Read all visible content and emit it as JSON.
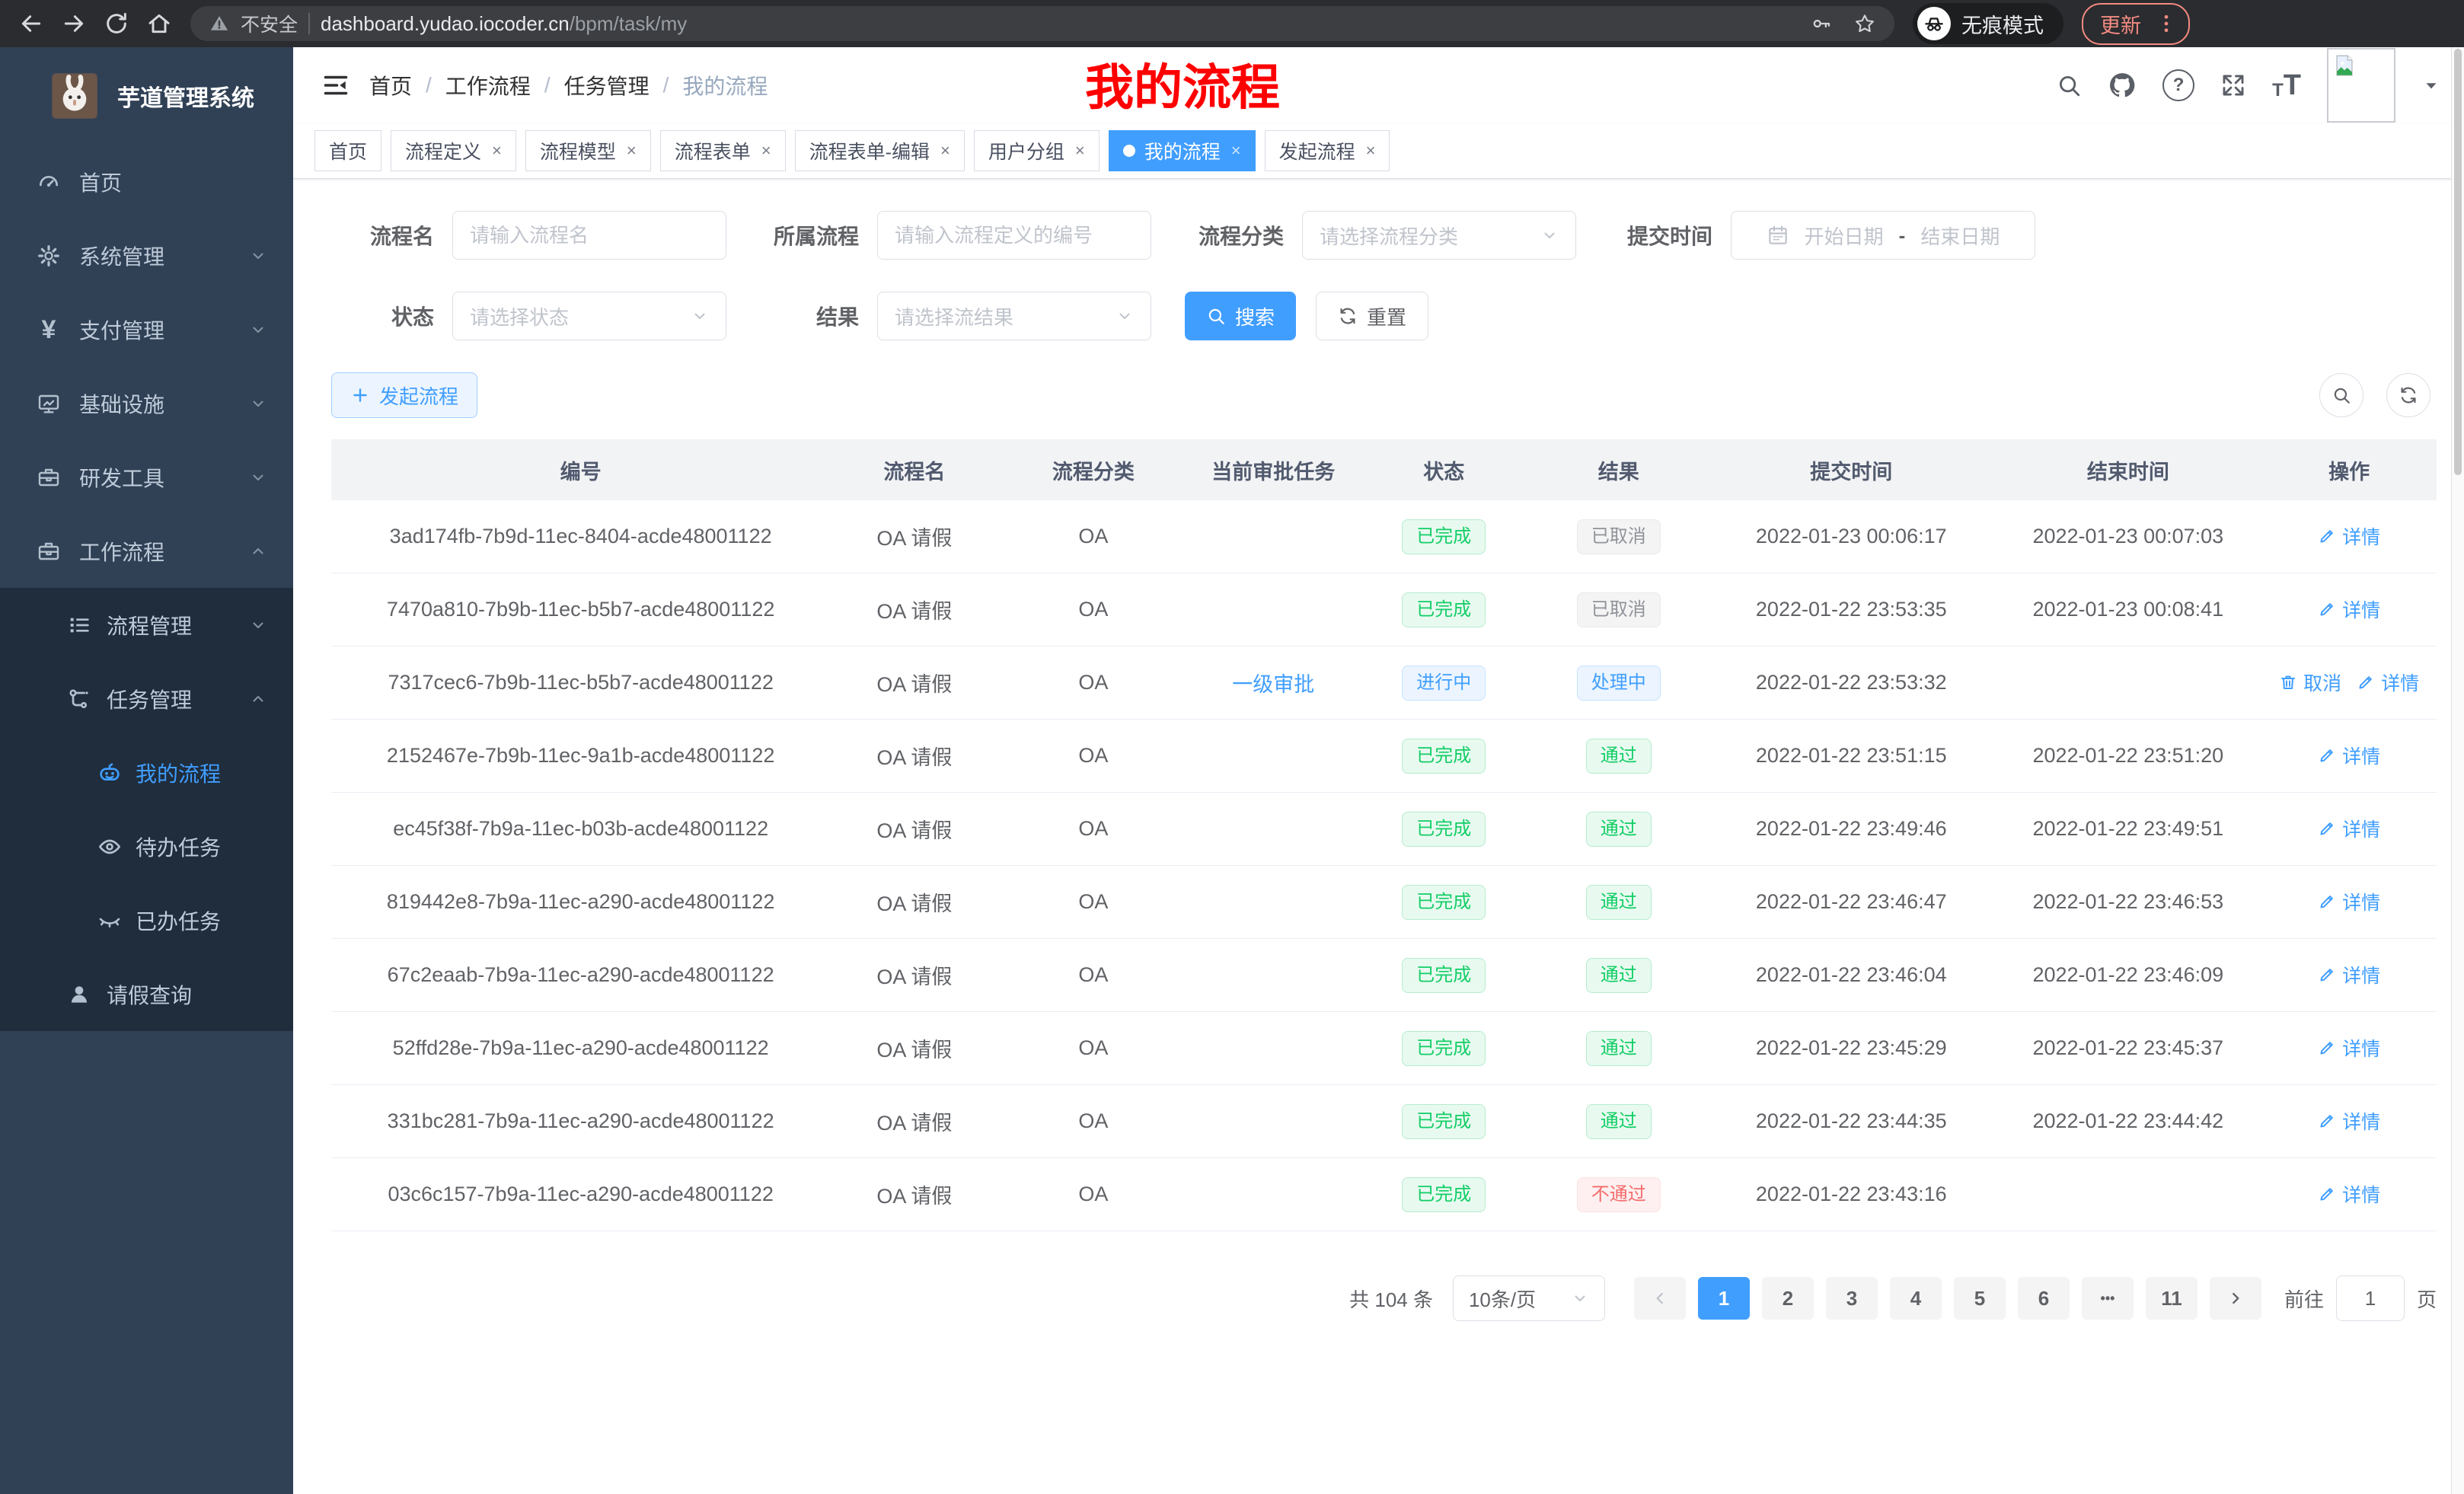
{
  "browser": {
    "security_warning": "不安全",
    "url_host": "dashboard.yudao.iocoder.cn",
    "url_path": "/bpm/task/my",
    "incognito_label": "无痕模式",
    "update_label": "更新"
  },
  "sidebar": {
    "app_title": "芋道管理系统",
    "items": [
      {
        "label": "首页",
        "icon": "gauge-icon",
        "depth": 1,
        "chevron": "",
        "dark": false,
        "active": false
      },
      {
        "label": "系统管理",
        "icon": "gear-icon",
        "depth": 1,
        "chevron": "down",
        "dark": false,
        "active": false
      },
      {
        "label": "支付管理",
        "icon": "yen-icon",
        "depth": 1,
        "chevron": "down",
        "dark": false,
        "active": false
      },
      {
        "label": "基础设施",
        "icon": "monitor-icon",
        "depth": 1,
        "chevron": "down",
        "dark": false,
        "active": false
      },
      {
        "label": "研发工具",
        "icon": "toolbox-icon",
        "depth": 1,
        "chevron": "down",
        "dark": false,
        "active": false
      },
      {
        "label": "工作流程",
        "icon": "briefcase-icon",
        "depth": 1,
        "chevron": "up",
        "dark": false,
        "active": false
      },
      {
        "label": "流程管理",
        "icon": "list-tree-icon",
        "depth": 2,
        "chevron": "down",
        "dark": true,
        "active": false
      },
      {
        "label": "任务管理",
        "icon": "flow-icon",
        "depth": 2,
        "chevron": "up",
        "dark": true,
        "active": false
      },
      {
        "label": "我的流程",
        "icon": "robot-icon",
        "depth": 3,
        "chevron": "",
        "dark": true,
        "active": true
      },
      {
        "label": "待办任务",
        "icon": "eye-icon",
        "depth": 3,
        "chevron": "",
        "dark": true,
        "active": false
      },
      {
        "label": "已办任务",
        "icon": "eye-closed-icon",
        "depth": 3,
        "chevron": "",
        "dark": true,
        "active": false
      },
      {
        "label": "请假查询",
        "icon": "user-icon",
        "depth": 2,
        "chevron": "",
        "dark": true,
        "active": false
      }
    ]
  },
  "header": {
    "breadcrumb": [
      "首页",
      "工作流程",
      "任务管理",
      "我的流程"
    ],
    "annotation": "我的流程"
  },
  "tabs": [
    {
      "label": "首页",
      "closable": false,
      "active": false
    },
    {
      "label": "流程定义",
      "closable": true,
      "active": false
    },
    {
      "label": "流程模型",
      "closable": true,
      "active": false
    },
    {
      "label": "流程表单",
      "closable": true,
      "active": false
    },
    {
      "label": "流程表单-编辑",
      "closable": true,
      "active": false
    },
    {
      "label": "用户分组",
      "closable": true,
      "active": false
    },
    {
      "label": "我的流程",
      "closable": true,
      "active": true
    },
    {
      "label": "发起流程",
      "closable": true,
      "active": false
    }
  ],
  "filters": {
    "row1": [
      {
        "label": "流程名",
        "type": "input",
        "placeholder": "请输入流程名"
      },
      {
        "label": "所属流程",
        "type": "input",
        "placeholder": "请输入流程定义的编号"
      },
      {
        "label": "流程分类",
        "type": "select",
        "placeholder": "请选择流程分类"
      },
      {
        "label": "提交时间",
        "type": "daterange",
        "start": "开始日期",
        "sep": "-",
        "end": "结束日期"
      }
    ],
    "row2": [
      {
        "label": "状态",
        "type": "select",
        "placeholder": "请选择状态"
      },
      {
        "label": "结果",
        "type": "select",
        "placeholder": "请选择流结果"
      }
    ],
    "search_label": "搜索",
    "reset_label": "重置"
  },
  "toolbar": {
    "create_label": "发起流程"
  },
  "table": {
    "columns": [
      "编号",
      "流程名",
      "流程分类",
      "当前审批任务",
      "状态",
      "结果",
      "提交时间",
      "结束时间",
      "操作"
    ],
    "rows": [
      {
        "id": "3ad174fb-7b9d-11ec-8404-acde48001122",
        "name": "OA 请假",
        "category": "OA",
        "task": "",
        "status": "已完成",
        "status_type": "success",
        "result": "已取消",
        "result_type": "info",
        "submit": "2022-01-23 00:06:17",
        "end": "2022-01-23 00:07:03",
        "actions": [
          {
            "label": "详情",
            "icon": "edit-icon"
          }
        ]
      },
      {
        "id": "7470a810-7b9b-11ec-b5b7-acde48001122",
        "name": "OA 请假",
        "category": "OA",
        "task": "",
        "status": "已完成",
        "status_type": "success",
        "result": "已取消",
        "result_type": "info",
        "submit": "2022-01-22 23:53:35",
        "end": "2022-01-23 00:08:41",
        "actions": [
          {
            "label": "详情",
            "icon": "edit-icon"
          }
        ]
      },
      {
        "id": "7317cec6-7b9b-11ec-b5b7-acde48001122",
        "name": "OA 请假",
        "category": "OA",
        "task": "一级审批",
        "status": "进行中",
        "status_type": "primary",
        "result": "处理中",
        "result_type": "primary",
        "submit": "2022-01-22 23:53:32",
        "end": "",
        "actions": [
          {
            "label": "取消",
            "icon": "delete-icon"
          },
          {
            "label": "详情",
            "icon": "edit-icon"
          }
        ]
      },
      {
        "id": "2152467e-7b9b-11ec-9a1b-acde48001122",
        "name": "OA 请假",
        "category": "OA",
        "task": "",
        "status": "已完成",
        "status_type": "success",
        "result": "通过",
        "result_type": "success",
        "submit": "2022-01-22 23:51:15",
        "end": "2022-01-22 23:51:20",
        "actions": [
          {
            "label": "详情",
            "icon": "edit-icon"
          }
        ]
      },
      {
        "id": "ec45f38f-7b9a-11ec-b03b-acde48001122",
        "name": "OA 请假",
        "category": "OA",
        "task": "",
        "status": "已完成",
        "status_type": "success",
        "result": "通过",
        "result_type": "success",
        "submit": "2022-01-22 23:49:46",
        "end": "2022-01-22 23:49:51",
        "actions": [
          {
            "label": "详情",
            "icon": "edit-icon"
          }
        ]
      },
      {
        "id": "819442e8-7b9a-11ec-a290-acde48001122",
        "name": "OA 请假",
        "category": "OA",
        "task": "",
        "status": "已完成",
        "status_type": "success",
        "result": "通过",
        "result_type": "success",
        "submit": "2022-01-22 23:46:47",
        "end": "2022-01-22 23:46:53",
        "actions": [
          {
            "label": "详情",
            "icon": "edit-icon"
          }
        ]
      },
      {
        "id": "67c2eaab-7b9a-11ec-a290-acde48001122",
        "name": "OA 请假",
        "category": "OA",
        "task": "",
        "status": "已完成",
        "status_type": "success",
        "result": "通过",
        "result_type": "success",
        "submit": "2022-01-22 23:46:04",
        "end": "2022-01-22 23:46:09",
        "actions": [
          {
            "label": "详情",
            "icon": "edit-icon"
          }
        ]
      },
      {
        "id": "52ffd28e-7b9a-11ec-a290-acde48001122",
        "name": "OA 请假",
        "category": "OA",
        "task": "",
        "status": "已完成",
        "status_type": "success",
        "result": "通过",
        "result_type": "success",
        "submit": "2022-01-22 23:45:29",
        "end": "2022-01-22 23:45:37",
        "actions": [
          {
            "label": "详情",
            "icon": "edit-icon"
          }
        ]
      },
      {
        "id": "331bc281-7b9a-11ec-a290-acde48001122",
        "name": "OA 请假",
        "category": "OA",
        "task": "",
        "status": "已完成",
        "status_type": "success",
        "result": "通过",
        "result_type": "success",
        "submit": "2022-01-22 23:44:35",
        "end": "2022-01-22 23:44:42",
        "actions": [
          {
            "label": "详情",
            "icon": "edit-icon"
          }
        ]
      },
      {
        "id": "03c6c157-7b9a-11ec-a290-acde48001122",
        "name": "OA 请假",
        "category": "OA",
        "task": "",
        "status": "已完成",
        "status_type": "success",
        "result": "不通过",
        "result_type": "danger",
        "submit": "2022-01-22 23:43:16",
        "end": "",
        "actions": [
          {
            "label": "详情",
            "icon": "edit-icon"
          }
        ]
      }
    ]
  },
  "pagination": {
    "total": "共 104 条",
    "page_size": "10条/页",
    "pages": [
      "1",
      "2",
      "3",
      "4",
      "5",
      "6",
      "...",
      "11"
    ],
    "active": "1",
    "goto_label": "前往",
    "goto_value": "1",
    "goto_unit": "页"
  },
  "colors": {
    "accent": "#409eff",
    "success": "#13ce66",
    "info": "#909399",
    "danger": "#f56c6c",
    "sidebar_bg": "#304156",
    "submenu_bg": "#1f2d3d",
    "annotation": "#ff0000"
  }
}
